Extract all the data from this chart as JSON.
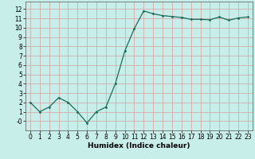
{
  "x": [
    0,
    1,
    2,
    3,
    4,
    5,
    6,
    7,
    8,
    9,
    10,
    11,
    12,
    13,
    14,
    15,
    16,
    17,
    18,
    19,
    20,
    21,
    22,
    23
  ],
  "y": [
    2.0,
    1.0,
    1.5,
    2.5,
    2.0,
    1.0,
    -0.2,
    1.0,
    1.5,
    4.0,
    7.5,
    9.9,
    11.8,
    11.5,
    11.3,
    11.2,
    11.1,
    10.9,
    10.9,
    10.85,
    11.15,
    10.8,
    11.05,
    11.15
  ],
  "line_color": "#1a6b5a",
  "marker": ".",
  "bg_color": "#c8eeea",
  "grid_color": "#d4a0a0",
  "xlabel": "Humidex (Indice chaleur)",
  "xlim": [
    -0.5,
    23.5
  ],
  "ylim": [
    -1.0,
    12.8
  ],
  "yticks": [
    0,
    1,
    2,
    3,
    4,
    5,
    6,
    7,
    8,
    9,
    10,
    11,
    12
  ],
  "xticks": [
    0,
    1,
    2,
    3,
    4,
    5,
    6,
    7,
    8,
    9,
    10,
    11,
    12,
    13,
    14,
    15,
    16,
    17,
    18,
    19,
    20,
    21,
    22,
    23
  ],
  "xlabel_fontsize": 6.5,
  "tick_fontsize": 5.5
}
